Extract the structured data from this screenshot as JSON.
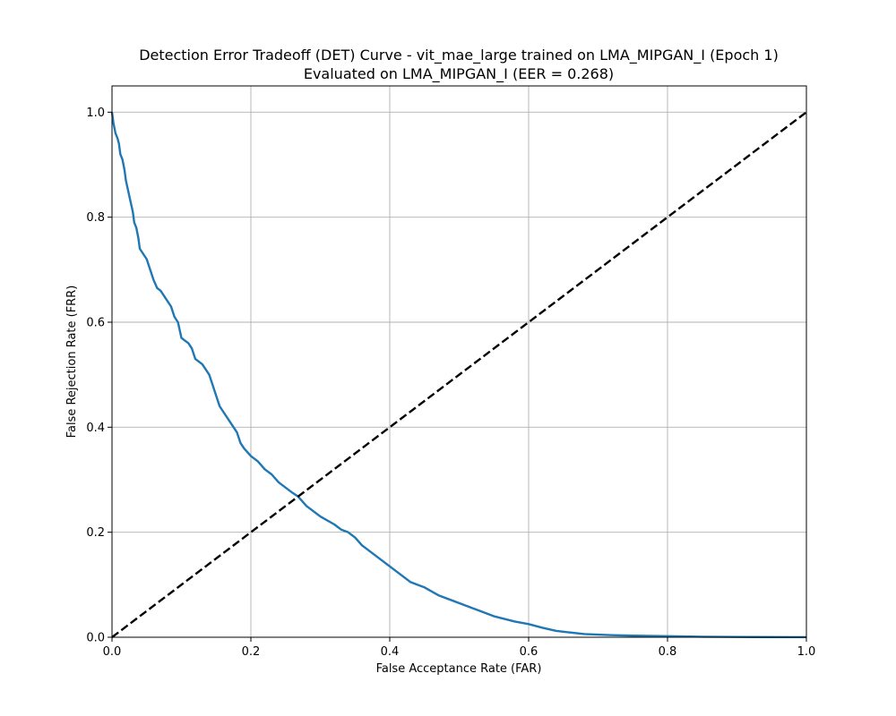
{
  "chart_data": {
    "type": "line",
    "title": "Detection Error Tradeoff (DET) Curve - vit_mae_large trained on LMA_MIPGAN_I (Epoch 1)",
    "subtitle": "Evaluated on LMA_MIPGAN_I (EER = 0.268)",
    "xlabel": "False Acceptance Rate (FAR)",
    "ylabel": "False Rejection Rate (FRR)",
    "xlim": [
      0.0,
      1.0
    ],
    "ylim": [
      0.0,
      1.05
    ],
    "x_ticks": [
      "0.0",
      "0.2",
      "0.4",
      "0.6",
      "0.8",
      "1.0"
    ],
    "y_ticks": [
      "0.0",
      "0.2",
      "0.4",
      "0.6",
      "0.8",
      "1.0"
    ],
    "grid": true,
    "series": [
      {
        "name": "",
        "color": "#1f77b4",
        "style": "solid",
        "x": [
          0.0,
          0.002,
          0.005,
          0.008,
          0.01,
          0.012,
          0.015,
          0.018,
          0.02,
          0.025,
          0.03,
          0.032,
          0.035,
          0.038,
          0.04,
          0.045,
          0.05,
          0.055,
          0.06,
          0.065,
          0.07,
          0.075,
          0.08,
          0.085,
          0.09,
          0.095,
          0.1,
          0.105,
          0.11,
          0.115,
          0.12,
          0.13,
          0.14,
          0.145,
          0.15,
          0.155,
          0.16,
          0.17,
          0.18,
          0.185,
          0.19,
          0.2,
          0.21,
          0.22,
          0.23,
          0.24,
          0.25,
          0.26,
          0.268,
          0.28,
          0.3,
          0.32,
          0.33,
          0.34,
          0.35,
          0.36,
          0.37,
          0.38,
          0.39,
          0.4,
          0.41,
          0.42,
          0.43,
          0.44,
          0.45,
          0.47,
          0.5,
          0.52,
          0.53,
          0.55,
          0.58,
          0.6,
          0.62,
          0.64,
          0.66,
          0.68,
          0.7,
          0.72,
          0.75,
          0.8,
          0.85,
          0.9,
          0.95,
          1.0
        ],
        "y": [
          1.0,
          0.98,
          0.96,
          0.95,
          0.94,
          0.92,
          0.91,
          0.89,
          0.87,
          0.84,
          0.81,
          0.79,
          0.78,
          0.76,
          0.74,
          0.73,
          0.72,
          0.7,
          0.68,
          0.665,
          0.66,
          0.65,
          0.64,
          0.63,
          0.61,
          0.6,
          0.57,
          0.565,
          0.56,
          0.55,
          0.53,
          0.52,
          0.5,
          0.48,
          0.46,
          0.44,
          0.43,
          0.41,
          0.39,
          0.37,
          0.36,
          0.345,
          0.335,
          0.32,
          0.31,
          0.295,
          0.285,
          0.275,
          0.268,
          0.25,
          0.23,
          0.215,
          0.205,
          0.2,
          0.19,
          0.175,
          0.165,
          0.155,
          0.145,
          0.135,
          0.125,
          0.115,
          0.105,
          0.1,
          0.095,
          0.08,
          0.065,
          0.055,
          0.05,
          0.04,
          0.03,
          0.025,
          0.018,
          0.012,
          0.009,
          0.006,
          0.005,
          0.004,
          0.003,
          0.002,
          0.001,
          0.0005,
          0.0002,
          0.0
        ]
      },
      {
        "name": "",
        "color": "#000000",
        "style": "dashed",
        "x": [
          0.0,
          1.0
        ],
        "y": [
          0.0,
          1.0
        ]
      }
    ]
  }
}
